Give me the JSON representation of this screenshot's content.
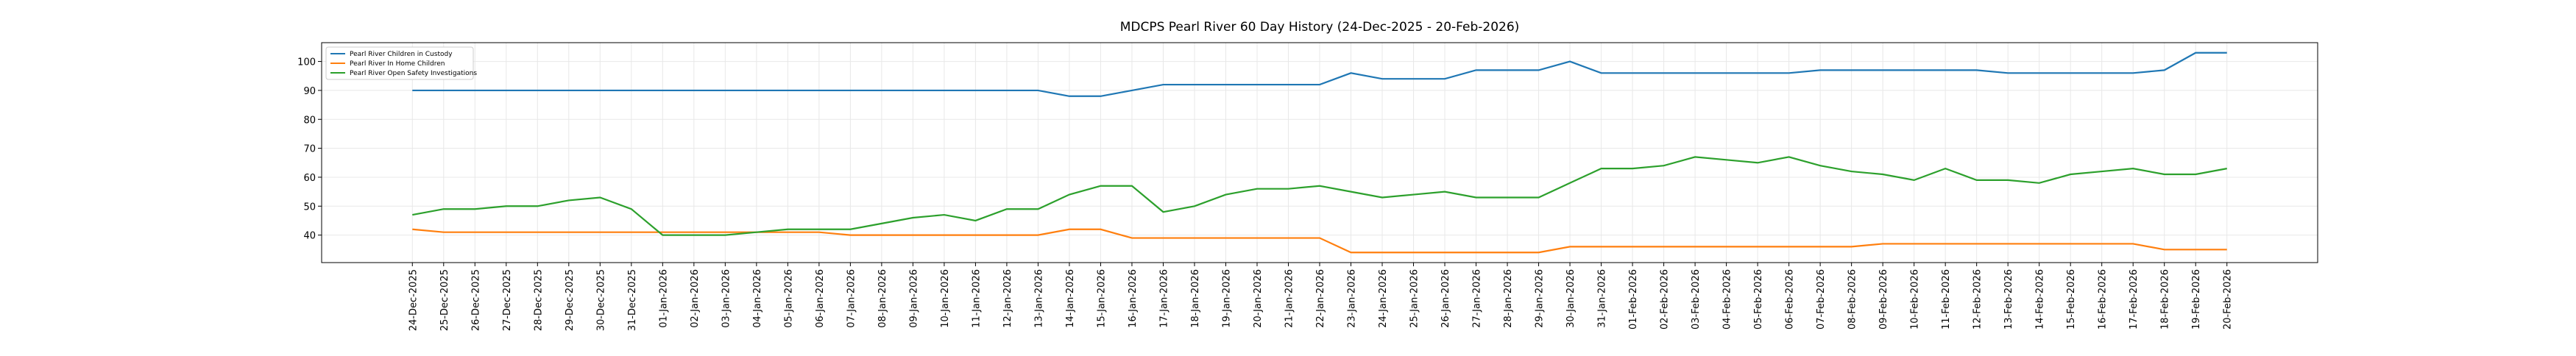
{
  "chart_data": {
    "type": "line",
    "title": "MDCPS Pearl River 60 Day History (24-Dec-2025 - 20-Feb-2026)",
    "categories": [
      "24-Dec-2025",
      "25-Dec-2025",
      "26-Dec-2025",
      "27-Dec-2025",
      "28-Dec-2025",
      "29-Dec-2025",
      "30-Dec-2025",
      "31-Dec-2025",
      "01-Jan-2026",
      "02-Jan-2026",
      "03-Jan-2026",
      "04-Jan-2026",
      "05-Jan-2026",
      "06-Jan-2026",
      "07-Jan-2026",
      "08-Jan-2026",
      "09-Jan-2026",
      "10-Jan-2026",
      "11-Jan-2026",
      "12-Jan-2026",
      "13-Jan-2026",
      "14-Jan-2026",
      "15-Jan-2026",
      "16-Jan-2026",
      "17-Jan-2026",
      "18-Jan-2026",
      "19-Jan-2026",
      "20-Jan-2026",
      "21-Jan-2026",
      "22-Jan-2026",
      "23-Jan-2026",
      "24-Jan-2026",
      "25-Jan-2026",
      "26-Jan-2026",
      "27-Jan-2026",
      "28-Jan-2026",
      "29-Jan-2026",
      "30-Jan-2026",
      "31-Jan-2026",
      "01-Feb-2026",
      "02-Feb-2026",
      "03-Feb-2026",
      "04-Feb-2026",
      "05-Feb-2026",
      "06-Feb-2026",
      "07-Feb-2026",
      "08-Feb-2026",
      "09-Feb-2026",
      "10-Feb-2026",
      "11-Feb-2026",
      "12-Feb-2026",
      "13-Feb-2026",
      "14-Feb-2026",
      "15-Feb-2026",
      "16-Feb-2026",
      "17-Feb-2026",
      "18-Feb-2026",
      "19-Feb-2026",
      "20-Feb-2026"
    ],
    "series": [
      {
        "name": "Pearl River Children in Custody",
        "color": "#1f77b4",
        "values": [
          90,
          90,
          90,
          90,
          90,
          90,
          90,
          90,
          90,
          90,
          90,
          90,
          90,
          90,
          90,
          90,
          90,
          90,
          90,
          90,
          90,
          88,
          88,
          90,
          92,
          92,
          92,
          92,
          92,
          92,
          96,
          94,
          94,
          94,
          97,
          97,
          97,
          100,
          96,
          96,
          96,
          96,
          96,
          96,
          96,
          97,
          97,
          97,
          97,
          97,
          97,
          96,
          96,
          96,
          96,
          96,
          97,
          103,
          103
        ]
      },
      {
        "name": "Pearl River In Home Children",
        "color": "#ff7f0e",
        "values": [
          42,
          41,
          41,
          41,
          41,
          41,
          41,
          41,
          41,
          41,
          41,
          41,
          41,
          41,
          40,
          40,
          40,
          40,
          40,
          40,
          40,
          42,
          42,
          39,
          39,
          39,
          39,
          39,
          39,
          39,
          34,
          34,
          34,
          34,
          34,
          34,
          34,
          36,
          36,
          36,
          36,
          36,
          36,
          36,
          36,
          36,
          36,
          37,
          37,
          37,
          37,
          37,
          37,
          37,
          37,
          37,
          35,
          35,
          35
        ]
      },
      {
        "name": "Pearl River Open Safety Investigations",
        "color": "#2ca02c",
        "values": [
          47,
          49,
          49,
          50,
          50,
          52,
          53,
          49,
          40,
          40,
          40,
          41,
          42,
          42,
          42,
          44,
          46,
          47,
          45,
          49,
          49,
          54,
          57,
          57,
          48,
          50,
          54,
          56,
          56,
          57,
          55,
          53,
          54,
          55,
          53,
          53,
          53,
          58,
          63,
          63,
          64,
          67,
          66,
          65,
          67,
          64,
          62,
          61,
          59,
          63,
          59,
          59,
          58,
          61,
          62,
          63,
          61,
          61,
          63
        ]
      }
    ],
    "ylim": [
      30.5,
      106.5
    ],
    "yticks": [
      40,
      50,
      60,
      70,
      80,
      90,
      100
    ],
    "grid": true,
    "legend": "upper left"
  }
}
